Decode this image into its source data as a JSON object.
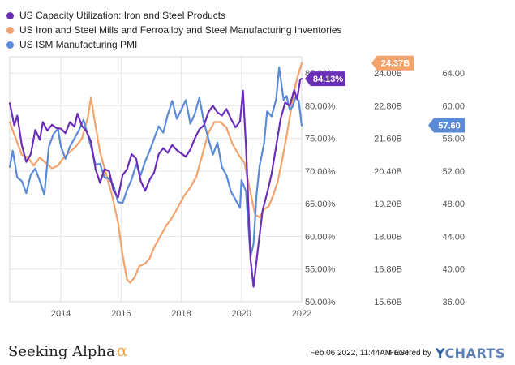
{
  "chart_data": {
    "type": "line",
    "x_range": [
      2012.3,
      2022.0
    ],
    "x_ticks": [
      "2014",
      "2016",
      "2018",
      "2020",
      "2022"
    ],
    "axes": {
      "capacity": {
        "range": [
          50,
          87.5
        ],
        "ticks": [
          "85.00%",
          "80.00%",
          "75.00%",
          "70.00%",
          "65.00%",
          "60.00%",
          "55.00%",
          "50.00%"
        ],
        "tick_values": [
          85,
          80,
          75,
          70,
          65,
          60,
          55,
          50
        ]
      },
      "inventories": {
        "range": [
          15.6,
          24.6
        ],
        "ticks": [
          "24.00B",
          "22.80B",
          "21.60B",
          "20.40B",
          "19.20B",
          "18.00B",
          "16.80B",
          "15.60B"
        ],
        "tick_values": [
          24.0,
          22.8,
          21.6,
          20.4,
          19.2,
          18.0,
          16.8,
          15.6
        ]
      },
      "pmi": {
        "range": [
          36,
          66
        ],
        "ticks": [
          "64.00",
          "60.00",
          "56.00",
          "52.00",
          "48.00",
          "44.00",
          "40.00",
          "36.00"
        ],
        "tick_values": [
          64,
          60,
          56,
          52,
          48,
          44,
          40,
          36
        ]
      }
    },
    "grid": true,
    "series": [
      {
        "name": "US Capacity Utilization: Iron and Steel Products",
        "axis": "capacity",
        "color": "#6a2fb8",
        "last_label": "84.13%",
        "points": [
          [
            2012.3,
            80.4
          ],
          [
            2012.45,
            77.0
          ],
          [
            2012.55,
            78.5
          ],
          [
            2012.7,
            74.0
          ],
          [
            2012.85,
            71.4
          ],
          [
            2013.0,
            72.6
          ],
          [
            2013.15,
            76.3
          ],
          [
            2013.3,
            74.8
          ],
          [
            2013.4,
            77.5
          ],
          [
            2013.55,
            76.2
          ],
          [
            2013.7,
            77.1
          ],
          [
            2013.85,
            76.6
          ],
          [
            2014.0,
            76.5
          ],
          [
            2014.15,
            75.8
          ],
          [
            2014.3,
            77.5
          ],
          [
            2014.45,
            76.8
          ],
          [
            2014.55,
            78.8
          ],
          [
            2014.7,
            76.9
          ],
          [
            2014.85,
            76.1
          ],
          [
            2015.0,
            74.5
          ],
          [
            2015.15,
            70.3
          ],
          [
            2015.3,
            68.2
          ],
          [
            2015.45,
            70.3
          ],
          [
            2015.6,
            70.0
          ],
          [
            2015.75,
            67.0
          ],
          [
            2015.9,
            66.0
          ],
          [
            2016.05,
            69.4
          ],
          [
            2016.2,
            70.3
          ],
          [
            2016.35,
            72.6
          ],
          [
            2016.5,
            71.9
          ],
          [
            2016.65,
            68.5
          ],
          [
            2016.8,
            67.0
          ],
          [
            2016.95,
            68.7
          ],
          [
            2017.1,
            69.8
          ],
          [
            2017.25,
            72.6
          ],
          [
            2017.4,
            73.5
          ],
          [
            2017.55,
            72.8
          ],
          [
            2017.7,
            74.0
          ],
          [
            2017.85,
            73.2
          ],
          [
            2018.0,
            72.7
          ],
          [
            2018.15,
            72.2
          ],
          [
            2018.3,
            73.3
          ],
          [
            2018.45,
            75.0
          ],
          [
            2018.6,
            76.4
          ],
          [
            2018.75,
            77.0
          ],
          [
            2018.9,
            79.0
          ],
          [
            2019.05,
            80.0
          ],
          [
            2019.2,
            79.0
          ],
          [
            2019.35,
            78.5
          ],
          [
            2019.5,
            79.5
          ],
          [
            2019.65,
            78.0
          ],
          [
            2019.8,
            76.7
          ],
          [
            2019.95,
            77.6
          ],
          [
            2020.05,
            82.3
          ],
          [
            2020.15,
            73.8
          ],
          [
            2020.3,
            56.5
          ],
          [
            2020.4,
            52.3
          ],
          [
            2020.55,
            58.3
          ],
          [
            2020.7,
            64.0
          ],
          [
            2020.85,
            66.6
          ],
          [
            2021.0,
            69.6
          ],
          [
            2021.15,
            73.8
          ],
          [
            2021.3,
            78.0
          ],
          [
            2021.45,
            80.5
          ],
          [
            2021.6,
            80.0
          ],
          [
            2021.75,
            82.4
          ],
          [
            2021.85,
            81.0
          ],
          [
            2021.95,
            84.0
          ],
          [
            2022.0,
            84.13
          ]
        ]
      },
      {
        "name": "US Iron and Steel Mills and Ferroalloy and Steel Manufacturing Inventories",
        "axis": "inventories",
        "color": "#f4a26b",
        "last_label": "24.37B",
        "points": [
          [
            2012.3,
            22.2
          ],
          [
            2012.5,
            21.6
          ],
          [
            2012.7,
            21.0
          ],
          [
            2012.9,
            20.9
          ],
          [
            2013.1,
            20.6
          ],
          [
            2013.3,
            20.9
          ],
          [
            2013.5,
            20.7
          ],
          [
            2013.7,
            20.5
          ],
          [
            2013.9,
            20.6
          ],
          [
            2014.1,
            20.9
          ],
          [
            2014.3,
            21.1
          ],
          [
            2014.5,
            21.3
          ],
          [
            2014.7,
            21.6
          ],
          [
            2014.9,
            22.4
          ],
          [
            2015.0,
            23.1
          ],
          [
            2015.1,
            22.4
          ],
          [
            2015.3,
            21.1
          ],
          [
            2015.5,
            20.3
          ],
          [
            2015.7,
            19.5
          ],
          [
            2015.9,
            18.5
          ],
          [
            2016.05,
            17.3
          ],
          [
            2016.2,
            16.4
          ],
          [
            2016.3,
            16.3
          ],
          [
            2016.45,
            16.5
          ],
          [
            2016.6,
            16.9
          ],
          [
            2016.8,
            17.0
          ],
          [
            2016.95,
            17.2
          ],
          [
            2017.1,
            17.6
          ],
          [
            2017.3,
            18.0
          ],
          [
            2017.5,
            18.4
          ],
          [
            2017.7,
            18.7
          ],
          [
            2017.9,
            19.1
          ],
          [
            2018.1,
            19.5
          ],
          [
            2018.3,
            19.8
          ],
          [
            2018.5,
            20.2
          ],
          [
            2018.7,
            21.0
          ],
          [
            2018.9,
            21.8
          ],
          [
            2019.1,
            22.2
          ],
          [
            2019.3,
            22.2
          ],
          [
            2019.5,
            22.0
          ],
          [
            2019.7,
            21.4
          ],
          [
            2019.9,
            21.0
          ],
          [
            2020.1,
            20.7
          ],
          [
            2020.3,
            19.6
          ],
          [
            2020.45,
            18.8
          ],
          [
            2020.6,
            18.7
          ],
          [
            2020.75,
            19.0
          ],
          [
            2020.9,
            19.1
          ],
          [
            2021.05,
            19.5
          ],
          [
            2021.2,
            20.0
          ],
          [
            2021.35,
            20.8
          ],
          [
            2021.5,
            21.7
          ],
          [
            2021.65,
            22.7
          ],
          [
            2021.8,
            23.6
          ],
          [
            2021.9,
            24.0
          ],
          [
            2022.0,
            24.37
          ]
        ]
      },
      {
        "name": "US ISM Manufacturing PMI",
        "axis": "pmi",
        "color": "#5b8ad6",
        "last_label": "57.60",
        "points": [
          [
            2012.3,
            52.5
          ],
          [
            2012.4,
            54.5
          ],
          [
            2012.55,
            51.2
          ],
          [
            2012.7,
            50.8
          ],
          [
            2012.85,
            49.3
          ],
          [
            2013.0,
            51.6
          ],
          [
            2013.15,
            52.3
          ],
          [
            2013.3,
            50.8
          ],
          [
            2013.45,
            49.1
          ],
          [
            2013.6,
            55.0
          ],
          [
            2013.75,
            56.5
          ],
          [
            2013.9,
            57.2
          ],
          [
            2014.0,
            55.0
          ],
          [
            2014.15,
            53.5
          ],
          [
            2014.3,
            55.0
          ],
          [
            2014.45,
            56.0
          ],
          [
            2014.6,
            57.0
          ],
          [
            2014.75,
            58.3
          ],
          [
            2014.85,
            57.0
          ],
          [
            2015.0,
            55.0
          ],
          [
            2015.15,
            52.8
          ],
          [
            2015.3,
            52.9
          ],
          [
            2015.45,
            51.2
          ],
          [
            2015.6,
            51.1
          ],
          [
            2015.75,
            50.2
          ],
          [
            2015.9,
            48.2
          ],
          [
            2016.05,
            48.1
          ],
          [
            2016.2,
            49.7
          ],
          [
            2016.35,
            51.0
          ],
          [
            2016.5,
            52.8
          ],
          [
            2016.65,
            51.5
          ],
          [
            2016.8,
            53.2
          ],
          [
            2016.95,
            54.5
          ],
          [
            2017.1,
            56.0
          ],
          [
            2017.25,
            57.5
          ],
          [
            2017.4,
            56.7
          ],
          [
            2017.55,
            58.9
          ],
          [
            2017.7,
            60.6
          ],
          [
            2017.85,
            58.4
          ],
          [
            2018.0,
            59.5
          ],
          [
            2018.15,
            60.7
          ],
          [
            2018.3,
            57.8
          ],
          [
            2018.45,
            59.0
          ],
          [
            2018.6,
            61.0
          ],
          [
            2018.75,
            58.0
          ],
          [
            2018.9,
            56.0
          ],
          [
            2019.05,
            54.0
          ],
          [
            2019.2,
            55.5
          ],
          [
            2019.35,
            52.5
          ],
          [
            2019.5,
            51.5
          ],
          [
            2019.65,
            49.5
          ],
          [
            2019.8,
            48.5
          ],
          [
            2019.95,
            47.5
          ],
          [
            2020.0,
            50.9
          ],
          [
            2020.15,
            49.5
          ],
          [
            2020.3,
            41.5
          ],
          [
            2020.4,
            43.1
          ],
          [
            2020.5,
            49.1
          ],
          [
            2020.6,
            52.6
          ],
          [
            2020.75,
            55.4
          ],
          [
            2020.85,
            59.3
          ],
          [
            2021.0,
            58.7
          ],
          [
            2021.15,
            60.8
          ],
          [
            2021.25,
            64.7
          ],
          [
            2021.4,
            60.7
          ],
          [
            2021.5,
            61.2
          ],
          [
            2021.6,
            59.5
          ],
          [
            2021.7,
            59.9
          ],
          [
            2021.8,
            61.1
          ],
          [
            2021.9,
            60.6
          ],
          [
            2022.0,
            57.6
          ]
        ]
      }
    ]
  },
  "footer": {
    "brand": "Seeking Alpha",
    "brand_symbol": "α",
    "timestamp": "Feb 06 2022, 11:44AM EST.",
    "powered_by": "Powered by",
    "provider_y": "Y",
    "provider_rest": "CHARTS"
  }
}
